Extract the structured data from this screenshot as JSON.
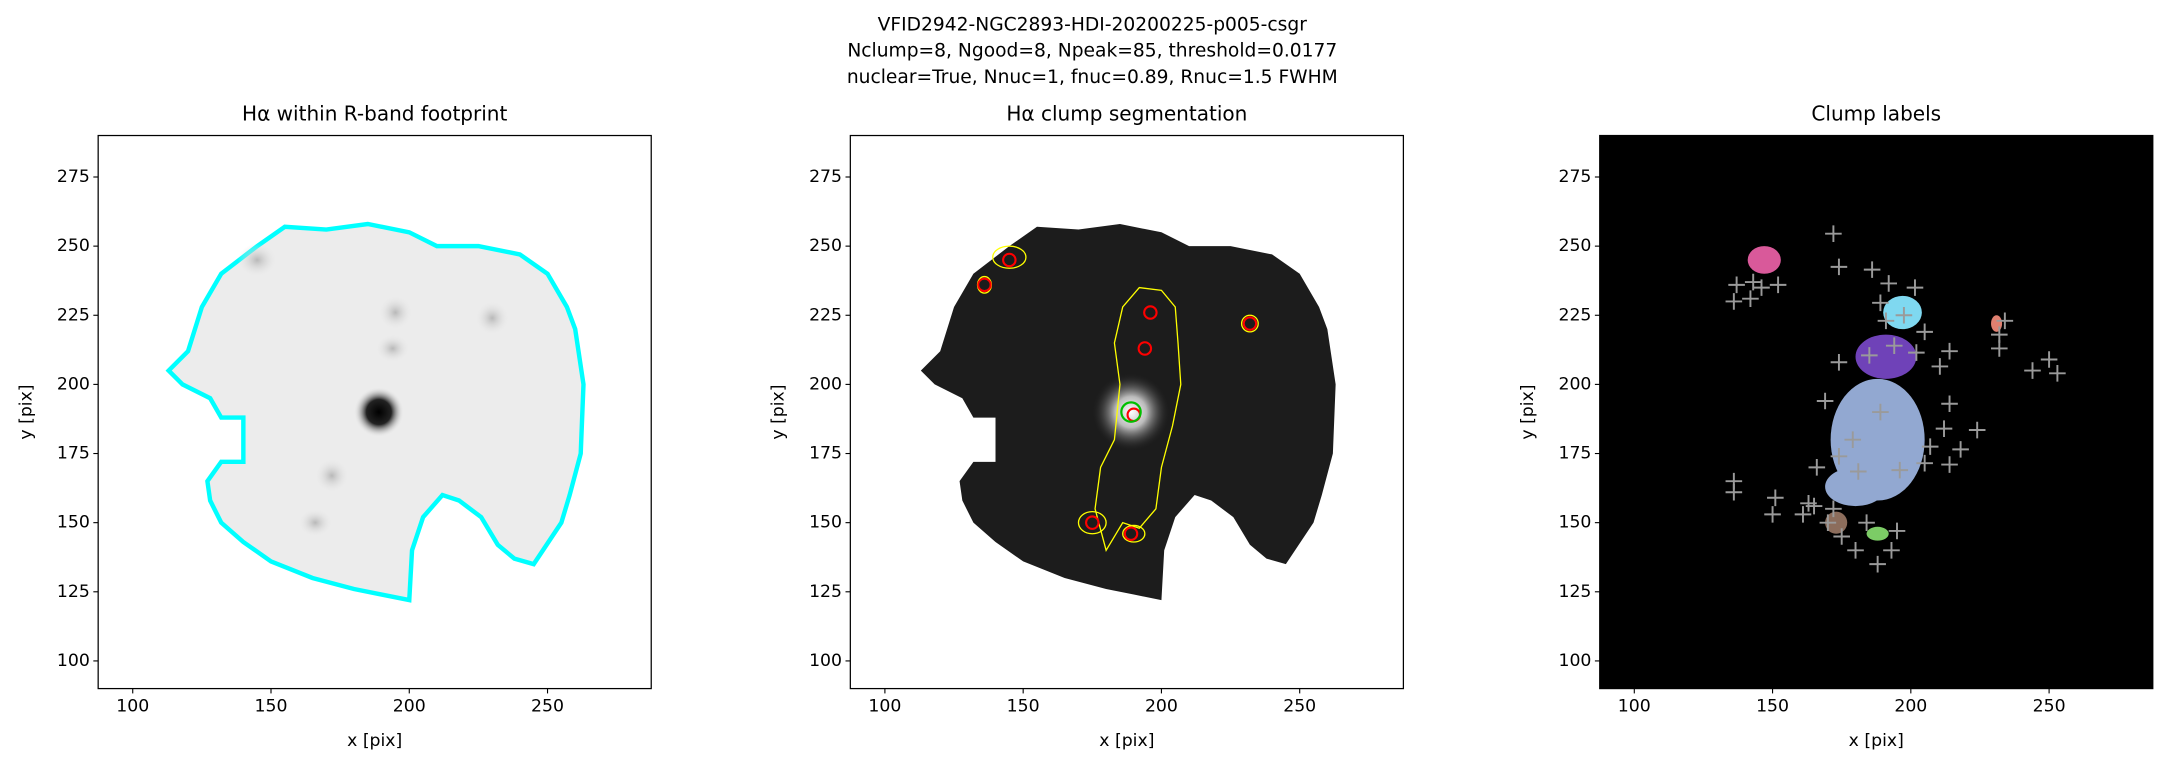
{
  "suptitle": [
    "VFID2942-NGC2893-HDI-20200225-p005-csgr",
    "Nclump=8, Ngood=8, Npeak=85, threshold=0.0177",
    "nuclear=True, Nnuc=1, fnuc=0.89, Rnuc=1.5 FWHM"
  ],
  "chart_data": [
    {
      "type": "image",
      "title": "Hα within R-band footprint",
      "xlabel": "x [pix]",
      "ylabel": "y [pix]",
      "xlim": [
        87.5,
        287.5
      ],
      "ylim": [
        90,
        290
      ],
      "xticks": [
        100,
        150,
        200,
        250
      ],
      "yticks": [
        100,
        125,
        150,
        175,
        200,
        225,
        250,
        275
      ]
    },
    {
      "type": "image",
      "title": "Hα clump segmentation",
      "xlabel": "x [pix]",
      "ylabel": "y [pix]",
      "xlim": [
        87.5,
        287.5
      ],
      "ylim": [
        90,
        290
      ],
      "xticks": [
        100,
        150,
        200,
        250
      ],
      "yticks": [
        100,
        125,
        150,
        175,
        200,
        225,
        250,
        275
      ],
      "markers": {
        "x": [
          145,
          136,
          196,
          194,
          190,
          175,
          189,
          232
        ],
        "y": [
          245,
          236,
          226,
          213,
          189,
          150,
          146,
          222
        ],
        "color": "#ff0000"
      },
      "nucleus": {
        "x": 189,
        "y": 190,
        "color": "#00c000"
      }
    },
    {
      "type": "image",
      "title": "Clump labels",
      "xlabel": "x [pix]",
      "ylabel": "y [pix]",
      "xlim": [
        87.5,
        287.5
      ],
      "ylim": [
        90,
        290
      ],
      "xticks": [
        100,
        150,
        200,
        250
      ],
      "yticks": [
        100,
        125,
        150,
        175,
        200,
        225,
        250,
        275
      ],
      "markers": {
        "x": [
          172,
          174,
          186,
          192,
          201.5,
          189,
          197.5,
          191,
          205,
          194,
          185,
          174,
          202,
          214,
          210.5,
          169,
          189,
          214,
          212,
          179,
          174,
          207,
          218,
          224,
          214,
          205,
          166,
          181,
          196,
          136,
          136,
          151,
          150,
          137,
          143,
          146,
          152,
          136,
          142,
          161,
          165,
          170,
          175,
          180,
          184,
          188,
          193,
          195,
          232,
          232,
          234,
          244,
          250,
          253,
          163,
          172
        ],
        "y": [
          254.5,
          242.5,
          241.5,
          236.5,
          235,
          229.5,
          225,
          223,
          219,
          214,
          210.5,
          208,
          211.5,
          212,
          206.5,
          194,
          190,
          193,
          184,
          180,
          174,
          177.5,
          176.5,
          183.5,
          171,
          171.5,
          170,
          168.5,
          169,
          165,
          161,
          159,
          153,
          236,
          237,
          235,
          236,
          230,
          231,
          153,
          156,
          150,
          145,
          140,
          150,
          135,
          140,
          147,
          213,
          218,
          223,
          205,
          209,
          204,
          157,
          155
        ],
        "color": "#9a9a9a"
      }
    }
  ]
}
